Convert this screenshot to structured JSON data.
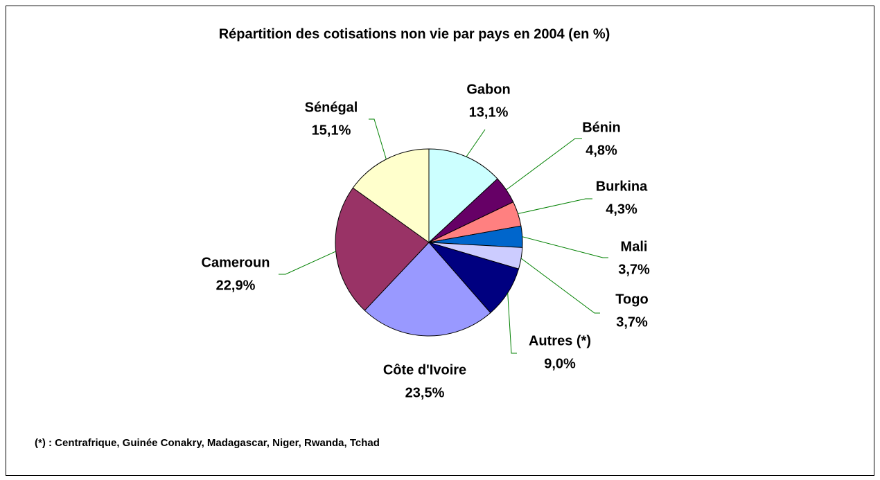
{
  "chart_data": {
    "type": "pie",
    "title": "Répartition des cotisations non vie par pays en 2004 (en %)",
    "categories": [
      "Gabon",
      "Bénin",
      "Burkina",
      "Mali",
      "Togo",
      "Autres (*)",
      "Côte d'Ivoire",
      "Cameroun",
      "Sénégal"
    ],
    "values": [
      13.1,
      4.8,
      4.3,
      3.7,
      3.7,
      9.0,
      23.5,
      22.9,
      15.1
    ],
    "value_labels": [
      "13,1%",
      "4,8%",
      "4,3%",
      "3,7%",
      "3,7%",
      "9,0%",
      "23,5%",
      "22,9%",
      "15,1%"
    ],
    "colors": [
      "#ccffff",
      "#660066",
      "#ff8080",
      "#0066cc",
      "#ccccff",
      "#000080",
      "#9999ff",
      "#993366",
      "#ffffcc"
    ],
    "footnote": "(*) : Centrafrique, Guinée Conakry, Madagascar, Niger, Rwanda, Tchad"
  }
}
